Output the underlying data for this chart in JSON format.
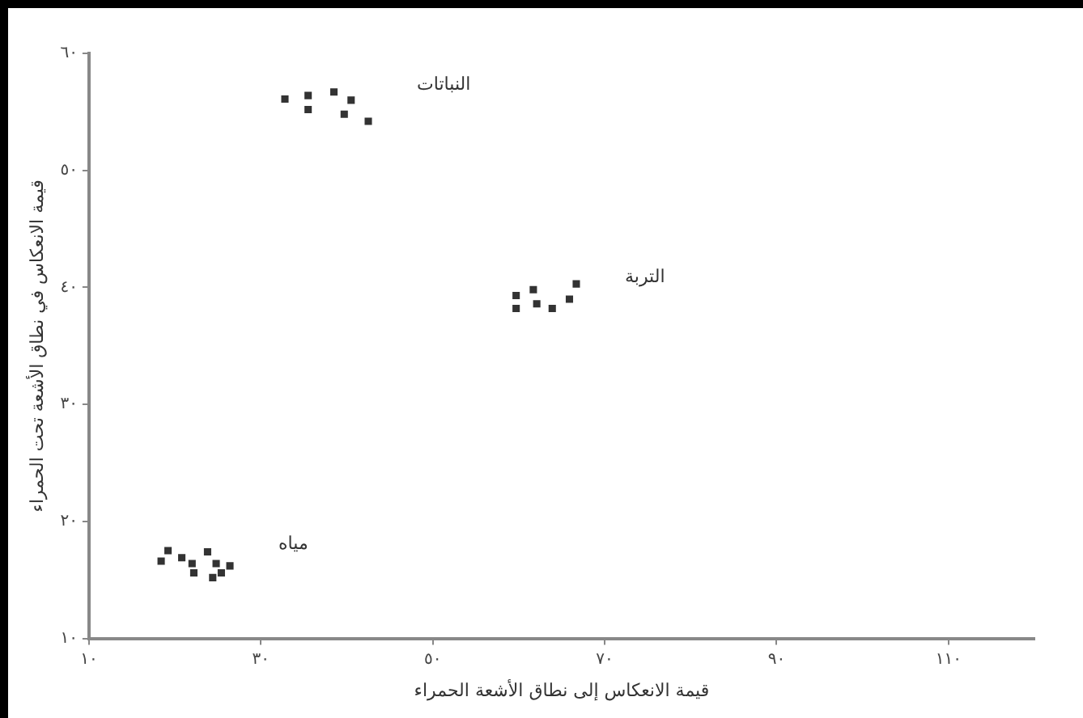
{
  "chart_data": {
    "type": "scatter",
    "xlabel": "قيمة الانعكاس إلى نطاق الأشعة الحمراء",
    "ylabel": "قيمة الانعكاس في نطاق الأشعة تحت الحمراء",
    "xlim": [
      10,
      120
    ],
    "ylim": [
      10,
      60
    ],
    "xticks": [
      {
        "value": 10,
        "label": "١٠"
      },
      {
        "value": 30,
        "label": "٣٠"
      },
      {
        "value": 50,
        "label": "٥٠"
      },
      {
        "value": 70,
        "label": "٧٠"
      },
      {
        "value": 90,
        "label": "٩٠"
      },
      {
        "value": 110,
        "label": "١١٠"
      }
    ],
    "yticks": [
      {
        "value": 10,
        "label": "١٠"
      },
      {
        "value": 20,
        "label": "٢٠"
      },
      {
        "value": 30,
        "label": "٣٠"
      },
      {
        "value": 40,
        "label": "٤٠"
      },
      {
        "value": 50,
        "label": "٥٠"
      },
      {
        "value": 60,
        "label": "٦٠"
      }
    ],
    "grid": false,
    "legend": false,
    "marker": "square",
    "series": [
      {
        "name": "النباتات",
        "color": "#333333",
        "x": [
          32.8,
          35.5,
          35.5,
          38.5,
          40.5,
          39.7,
          42.5
        ],
        "values": [
          56.1,
          56.4,
          55.2,
          56.7,
          56.0,
          54.8,
          54.2
        ]
      },
      {
        "name": "التربة",
        "color": "#333333",
        "x": [
          59.7,
          59.7,
          61.7,
          62.1,
          63.9,
          65.9,
          66.7
        ],
        "values": [
          39.3,
          38.2,
          39.8,
          38.6,
          38.2,
          39.0,
          40.3
        ]
      },
      {
        "name": "مياه",
        "color": "#333333",
        "x": [
          19.2,
          18.4,
          20.8,
          22.0,
          22.2,
          23.8,
          24.8,
          25.4,
          26.4,
          24.4
        ],
        "values": [
          17.5,
          16.6,
          16.9,
          16.4,
          15.6,
          17.4,
          16.4,
          15.6,
          16.2,
          15.2
        ]
      }
    ]
  }
}
